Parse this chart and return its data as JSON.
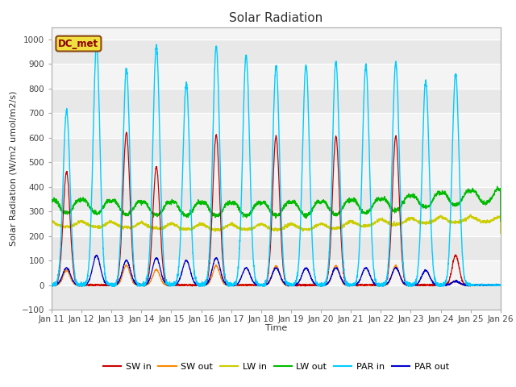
{
  "title": "Solar Radiation",
  "ylabel": "Solar Radiation (W/m2 umol/m2/s)",
  "xlabel": "Time",
  "ylim": [
    -100,
    1050
  ],
  "yticks": [
    -100,
    0,
    100,
    200,
    300,
    400,
    500,
    600,
    700,
    800,
    900,
    1000
  ],
  "xtick_labels": [
    "Jan 11",
    "Jan 12",
    "Jan 13",
    "Jan 14",
    "Jan 15",
    "Jan 16",
    "Jan 17",
    "Jan 18",
    "Jan 19",
    "Jan 20",
    "Jan 21",
    "Jan 22",
    "Jan 23",
    "Jan 24",
    "Jan 25",
    "Jan 26"
  ],
  "colors": {
    "SW_in": "#cc0000",
    "SW_out": "#ff8800",
    "LW_in": "#cccc00",
    "LW_out": "#00bb00",
    "PAR_in": "#00ccff",
    "PAR_out": "#0000cc"
  },
  "legend_label": "DC_met",
  "n_days": 15,
  "n_points": 3000
}
